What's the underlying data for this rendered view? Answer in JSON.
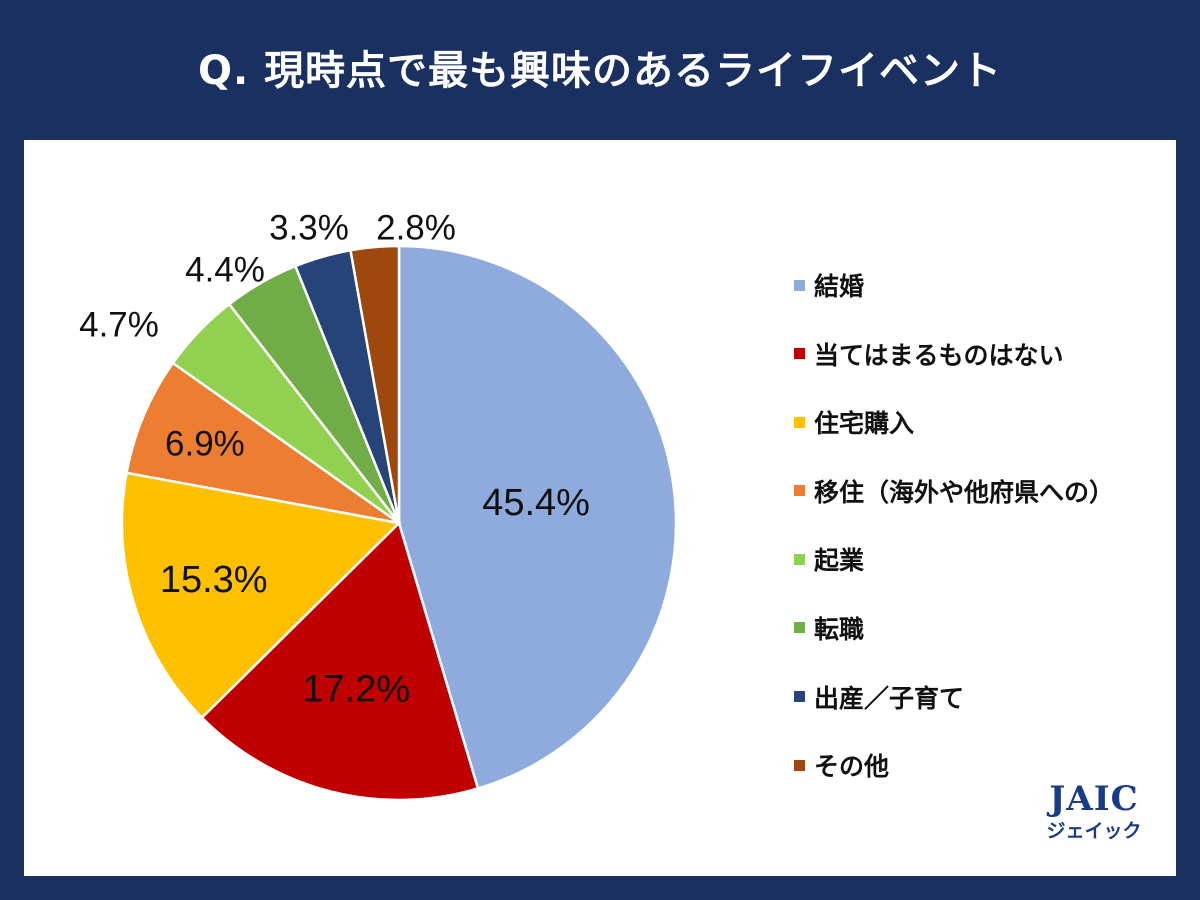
{
  "header": {
    "title": "Q. 現時点で最も興味のあるライフイベント"
  },
  "chart_data": {
    "type": "pie",
    "title": "Q. 現時点で最も興味のあるライフイベント",
    "unit": "%",
    "start_angle_deg": 0,
    "direction": "clockwise",
    "legend_position": "right",
    "slices": [
      {
        "label": "結婚",
        "value": 45.4,
        "display": "45.4%",
        "color": "#8faadc"
      },
      {
        "label": "当てはまるものはない",
        "value": 17.2,
        "display": "17.2%",
        "color": "#c00000"
      },
      {
        "label": "住宅購入",
        "value": 15.3,
        "display": "15.3%",
        "color": "#ffc000"
      },
      {
        "label": "移住（海外や他府県への）",
        "value": 6.9,
        "display": "6.9%",
        "color": "#ed7d31"
      },
      {
        "label": "起業",
        "value": 4.7,
        "display": "4.7%",
        "color": "#92d050"
      },
      {
        "label": "転職",
        "value": 4.4,
        "display": "4.4%",
        "color": "#70ad47"
      },
      {
        "label": "出産／子育て",
        "value": 3.3,
        "display": "3.3%",
        "color": "#264478"
      },
      {
        "label": "その他",
        "value": 2.8,
        "display": "2.8%",
        "color": "#9e480e"
      }
    ]
  },
  "logo": {
    "mark": "JAIC",
    "kana": "ジェイック"
  }
}
